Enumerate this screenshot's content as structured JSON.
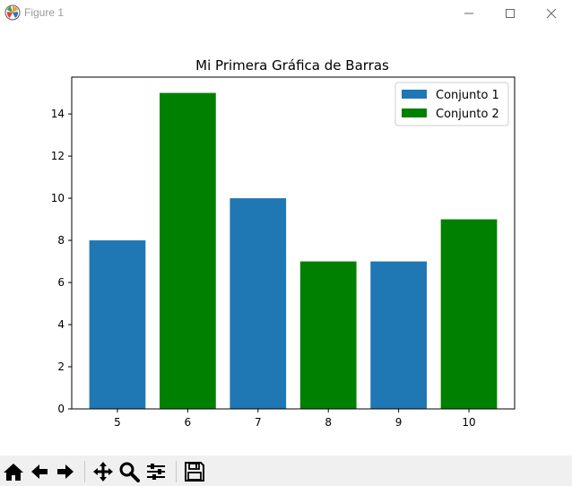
{
  "window": {
    "title": "Figure 1"
  },
  "chart_data": {
    "type": "bar",
    "title": "Mi Primera Gráfica de Barras",
    "xlabel": "",
    "ylabel": "",
    "x_ticks": [
      5,
      6,
      7,
      8,
      9,
      10
    ],
    "y_ticks": [
      0,
      2,
      4,
      6,
      8,
      10,
      12,
      14
    ],
    "xlim": [
      4.35,
      10.65
    ],
    "ylim": [
      0,
      15.75
    ],
    "grid": false,
    "legend_position": "top-right",
    "series": [
      {
        "name": "Conjunto 1",
        "color": "#1f77b4",
        "x": [
          5,
          7,
          9
        ],
        "values": [
          8,
          10,
          7
        ]
      },
      {
        "name": "Conjunto 2",
        "color": "#008000",
        "x": [
          6,
          8,
          10
        ],
        "values": [
          15,
          7,
          9
        ]
      }
    ]
  },
  "toolbar": {
    "buttons": [
      {
        "name": "home-button",
        "icon": "home-icon"
      },
      {
        "name": "back-button",
        "icon": "arrow-left-icon"
      },
      {
        "name": "forward-button",
        "icon": "arrow-right-icon"
      },
      {
        "name": "pan-button",
        "icon": "move-icon"
      },
      {
        "name": "zoom-button",
        "icon": "magnifier-icon"
      },
      {
        "name": "configure-subplots-button",
        "icon": "sliders-icon"
      },
      {
        "name": "save-button",
        "icon": "floppy-disk-icon"
      }
    ]
  }
}
